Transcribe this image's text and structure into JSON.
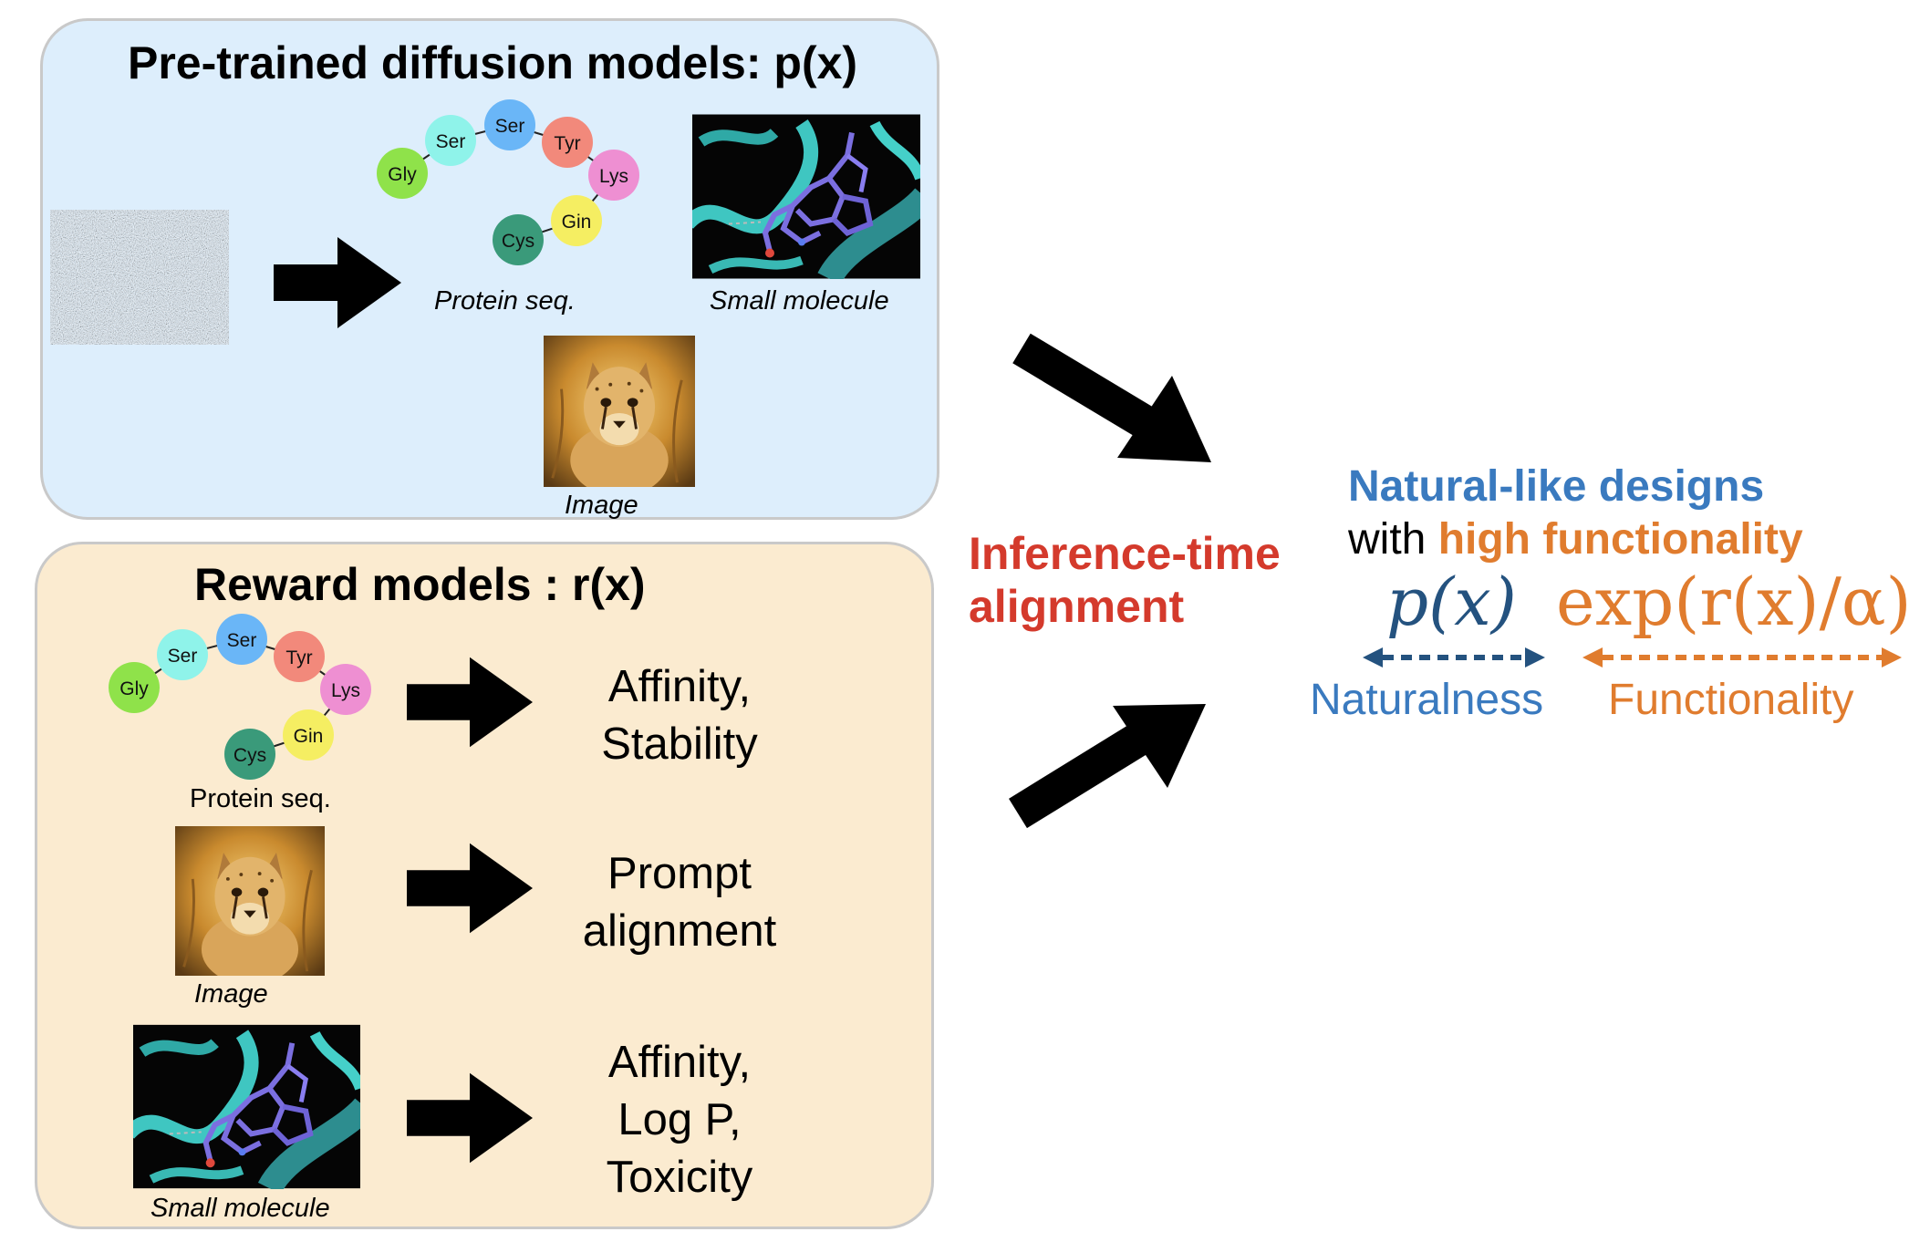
{
  "top_panel": {
    "title": "Pre-trained diffusion models: p(x)",
    "protein_caption": "Protein seq.",
    "molecule_caption": "Small molecule",
    "image_caption": "Image"
  },
  "bottom_panel": {
    "title": "Reward models : r(x)",
    "protein_caption": "Protein seq.",
    "image_caption": "Image",
    "molecule_caption": "Small molecule",
    "reward_protein": [
      "Affinity,",
      "Stability"
    ],
    "reward_image": [
      "Prompt",
      "alignment"
    ],
    "reward_molecule": [
      "Affinity,",
      "Log P,",
      "Toxicity"
    ]
  },
  "amino_acids": [
    {
      "name": "Gly",
      "color": "#8fe24a"
    },
    {
      "name": "Ser",
      "color": "#8ff3ea"
    },
    {
      "name": "Ser",
      "color": "#6ab6f7"
    },
    {
      "name": "Tyr",
      "color": "#f2897b"
    },
    {
      "name": "Lys",
      "color": "#ee8fd2"
    },
    {
      "name": "Gin",
      "color": "#f5ee62"
    },
    {
      "name": "Cys",
      "color": "#3a9a7a"
    }
  ],
  "center": {
    "line1": "Inference-time",
    "line2": "alignment"
  },
  "outcome": {
    "line1": "Natural-like designs",
    "with": "with ",
    "functionality": "high functionality",
    "formula_p": "p(x)",
    "formula_exp": "exp(r(x)/α)",
    "naturalness": "Naturalness",
    "functionality_label": "Functionality"
  },
  "colors": {
    "top_panel_bg": "#ddeefc",
    "bottom_panel_bg": "#fbebd0",
    "inference_red": "#d43a2c",
    "natural_blue": "#3a7abf",
    "function_orange": "#e07c2e"
  }
}
